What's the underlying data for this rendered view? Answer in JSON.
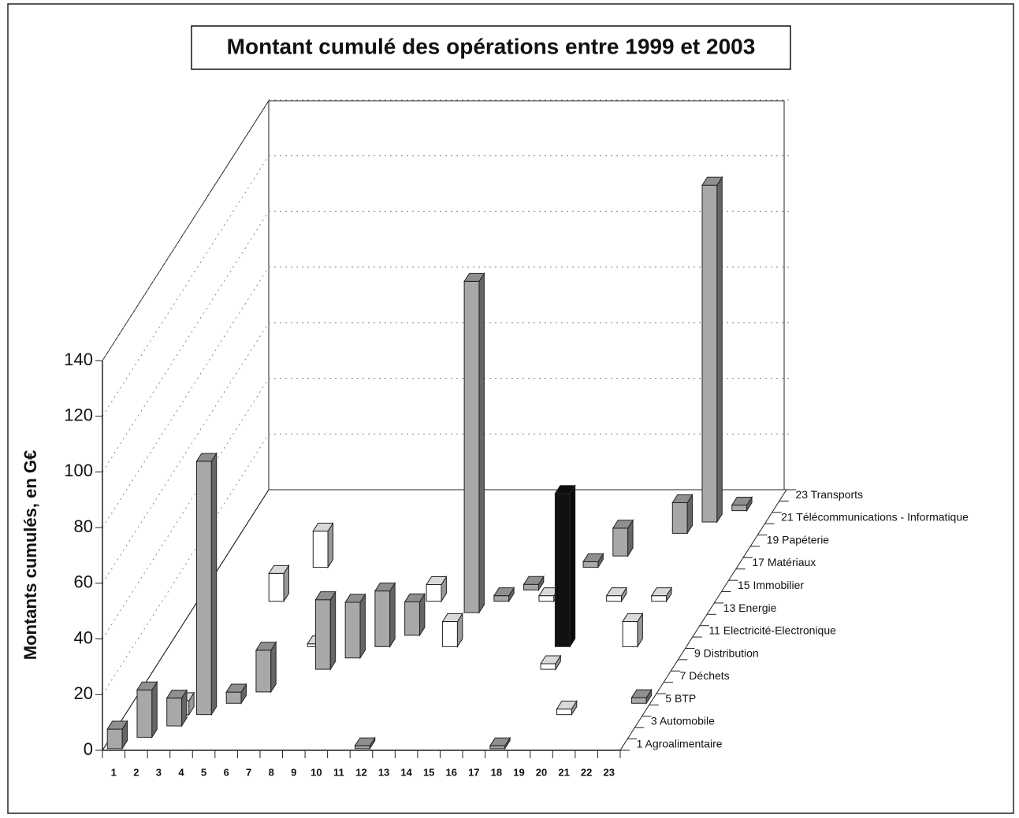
{
  "chart_data": {
    "type": "bar3d",
    "title": "Montant cumulé des opérations entre 1999 et 2003",
    "y_label": "Montants cumulés, en G€",
    "ylim": [
      0,
      140
    ],
    "yticks": [
      0,
      20,
      40,
      60,
      80,
      100,
      120,
      140
    ],
    "grid": true,
    "categories": [
      "1",
      "2",
      "3",
      "4",
      "5",
      "6",
      "7",
      "8",
      "9",
      "10",
      "11",
      "12",
      "13",
      "14",
      "15",
      "16",
      "17",
      "18",
      "19",
      "20",
      "21",
      "22",
      "23"
    ],
    "depth_categories": [
      "1 Agroalimentaire",
      null,
      "3 Automobile",
      null,
      "5 BTP",
      null,
      "7 Déchets",
      null,
      "9 Distribution",
      null,
      "11 Electricité-Electronique",
      null,
      "13 Energie",
      null,
      "15 Immobilier",
      null,
      "17 Matériaux",
      null,
      "19 Papéterie",
      null,
      "21 Télécommunications - Informatique",
      null,
      "23 Transports"
    ],
    "bars": [
      {
        "x": 1,
        "depth": 1,
        "value": 7,
        "color": "#a8a8a8"
      },
      {
        "x": 2,
        "depth": 2,
        "value": 17,
        "color": "#a8a8a8"
      },
      {
        "x": 3,
        "depth": 4,
        "value": 5,
        "color": "#ffffff"
      },
      {
        "x": 3,
        "depth": 3,
        "value": 10,
        "color": "#a8a8a8"
      },
      {
        "x": 4,
        "depth": 4,
        "value": 91,
        "color": "#a8a8a8"
      },
      {
        "x": 5,
        "depth": 5,
        "value": 4,
        "color": "#a8a8a8"
      },
      {
        "x": 6,
        "depth": 6,
        "value": 15,
        "color": "#a8a8a8"
      },
      {
        "x": 4,
        "depth": 14,
        "value": 10,
        "color": "#ffffff"
      },
      {
        "x": 7,
        "depth": 10,
        "value": 1,
        "color": "#ffffff"
      },
      {
        "x": 8,
        "depth": 8,
        "value": 25,
        "color": "#a8a8a8"
      },
      {
        "x": 5,
        "depth": 17,
        "value": 13,
        "color": "#ffffff"
      },
      {
        "x": 9,
        "depth": 9,
        "value": 20,
        "color": "#a8a8a8"
      },
      {
        "x": 10,
        "depth": 10,
        "value": 20,
        "color": "#a8a8a8"
      },
      {
        "x": 11,
        "depth": 11,
        "value": 12,
        "color": "#a8a8a8"
      },
      {
        "x": 11,
        "depth": 14,
        "value": 6,
        "color": "#ffffff"
      },
      {
        "x": 13,
        "depth": 13,
        "value": 119,
        "color": "#a8a8a8"
      },
      {
        "x": 13,
        "depth": 10,
        "value": 9,
        "color": "#ffffff"
      },
      {
        "x": 12,
        "depth": 1,
        "value": 1,
        "color": "#a8a8a8"
      },
      {
        "x": 18,
        "depth": 1,
        "value": 1,
        "color": "#a8a8a8"
      },
      {
        "x": 14,
        "depth": 14,
        "value": 2,
        "color": "#a8a8a8"
      },
      {
        "x": 15,
        "depth": 15,
        "value": 2,
        "color": "#a8a8a8"
      },
      {
        "x": 16,
        "depth": 14,
        "value": 2,
        "color": "#ffffff"
      },
      {
        "x": 18,
        "depth": 8,
        "value": 2,
        "color": "#ffffff"
      },
      {
        "x": 18,
        "depth": 10,
        "value": 55,
        "color": "#111111"
      },
      {
        "x": 20,
        "depth": 4,
        "value": 2,
        "color": "#ffffff"
      },
      {
        "x": 17,
        "depth": 17,
        "value": 2,
        "color": "#a8a8a8"
      },
      {
        "x": 18,
        "depth": 18,
        "value": 10,
        "color": "#a8a8a8"
      },
      {
        "x": 19,
        "depth": 14,
        "value": 2,
        "color": "#ffffff"
      },
      {
        "x": 21,
        "depth": 10,
        "value": 9,
        "color": "#ffffff"
      },
      {
        "x": 23,
        "depth": 5,
        "value": 2,
        "color": "#a8a8a8"
      },
      {
        "x": 21,
        "depth": 14,
        "value": 2,
        "color": "#ffffff"
      },
      {
        "x": 20,
        "depth": 20,
        "value": 11,
        "color": "#a8a8a8"
      },
      {
        "x": 21,
        "depth": 21,
        "value": 121,
        "color": "#a8a8a8"
      },
      {
        "x": 22,
        "depth": 22,
        "value": 2,
        "color": "#a8a8a8"
      }
    ]
  }
}
